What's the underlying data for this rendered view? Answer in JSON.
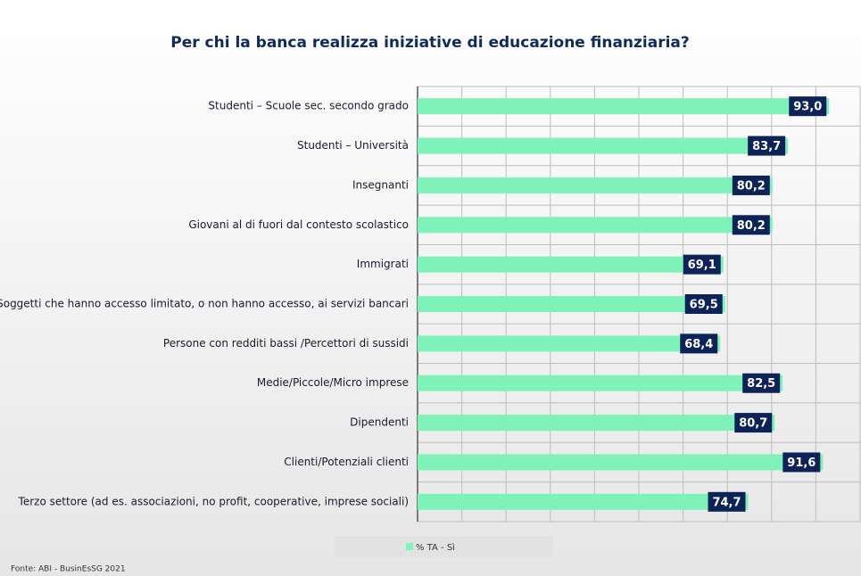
{
  "chart_data": {
    "type": "bar",
    "orientation": "horizontal",
    "title": "Per chi la banca realizza iniziative di educazione finanziaria?",
    "categories": [
      "Studenti – Scuole sec. secondo grado",
      "Studenti – Università",
      "Insegnanti",
      "Giovani al di fuori dal contesto scolastico",
      "Immigrati",
      "Soggetti che hanno accesso limitato, o non hanno accesso, ai servizi bancari",
      "Persone con redditi bassi /Percettori di sussidi",
      "Medie/Piccole/Micro imprese",
      "Dipendenti",
      "Clienti/Potenziali clienti",
      "Terzo settore (ad es. associazioni, no profit, cooperative, imprese sociali)"
    ],
    "series": [
      {
        "name": "% TA - Sì",
        "color": "#7ff2b9",
        "values": [
          93.0,
          83.7,
          80.2,
          80.2,
          69.1,
          69.5,
          68.4,
          82.5,
          80.7,
          91.6,
          74.7
        ],
        "value_labels": [
          "93,0",
          "83,7",
          "80,2",
          "80,2",
          "69,1",
          "69,5",
          "68,4",
          "82,5",
          "80,7",
          "91,6",
          "74,7"
        ]
      }
    ],
    "xlim": [
      0,
      100
    ],
    "xticks": [
      0,
      10,
      20,
      30,
      40,
      50,
      60,
      70,
      80,
      90,
      100
    ],
    "grid": true,
    "source": "Fonte: ABI - BusinEsSG 2021"
  }
}
